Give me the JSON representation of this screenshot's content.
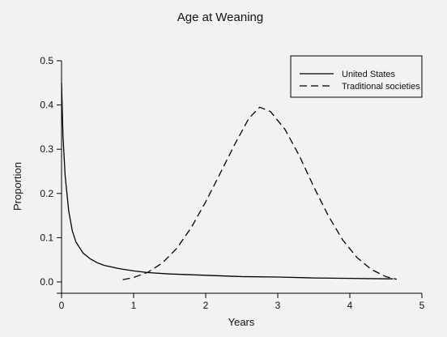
{
  "chart_data": {
    "type": "line",
    "title": "Age at Weaning",
    "xlabel": "Years",
    "ylabel": "Proportion",
    "xlim": [
      0,
      5
    ],
    "ylim": [
      0,
      0.5
    ],
    "xticks": [
      "0",
      "1",
      "2",
      "3",
      "4",
      "5"
    ],
    "yticks": [
      "0.0",
      "0.1",
      "0.2",
      "0.3",
      "0.4",
      "0.5"
    ],
    "grid": false,
    "legend_position": "top-right",
    "series": [
      {
        "name": "United States",
        "style": "solid",
        "color": "#000000",
        "x": [
          0,
          0.02,
          0.05,
          0.1,
          0.15,
          0.2,
          0.3,
          0.4,
          0.5,
          0.6,
          0.8,
          1.0,
          1.2,
          1.5,
          2.0,
          2.5,
          3.0,
          3.5,
          4.0,
          4.5,
          4.6
        ],
        "y": [
          0.45,
          0.33,
          0.24,
          0.16,
          0.115,
          0.09,
          0.065,
          0.052,
          0.043,
          0.037,
          0.03,
          0.025,
          0.021,
          0.018,
          0.015,
          0.012,
          0.011,
          0.009,
          0.008,
          0.007,
          0.007
        ]
      },
      {
        "name": "Traditional societies",
        "style": "dashed",
        "color": "#000000",
        "x": [
          0.85,
          1.0,
          1.2,
          1.4,
          1.6,
          1.8,
          2.0,
          2.2,
          2.4,
          2.6,
          2.75,
          2.9,
          3.1,
          3.3,
          3.5,
          3.7,
          3.9,
          4.1,
          4.3,
          4.5,
          4.65
        ],
        "y": [
          0.005,
          0.01,
          0.022,
          0.043,
          0.076,
          0.123,
          0.181,
          0.245,
          0.31,
          0.37,
          0.395,
          0.385,
          0.345,
          0.285,
          0.215,
          0.15,
          0.095,
          0.055,
          0.028,
          0.012,
          0.006
        ]
      }
    ]
  }
}
